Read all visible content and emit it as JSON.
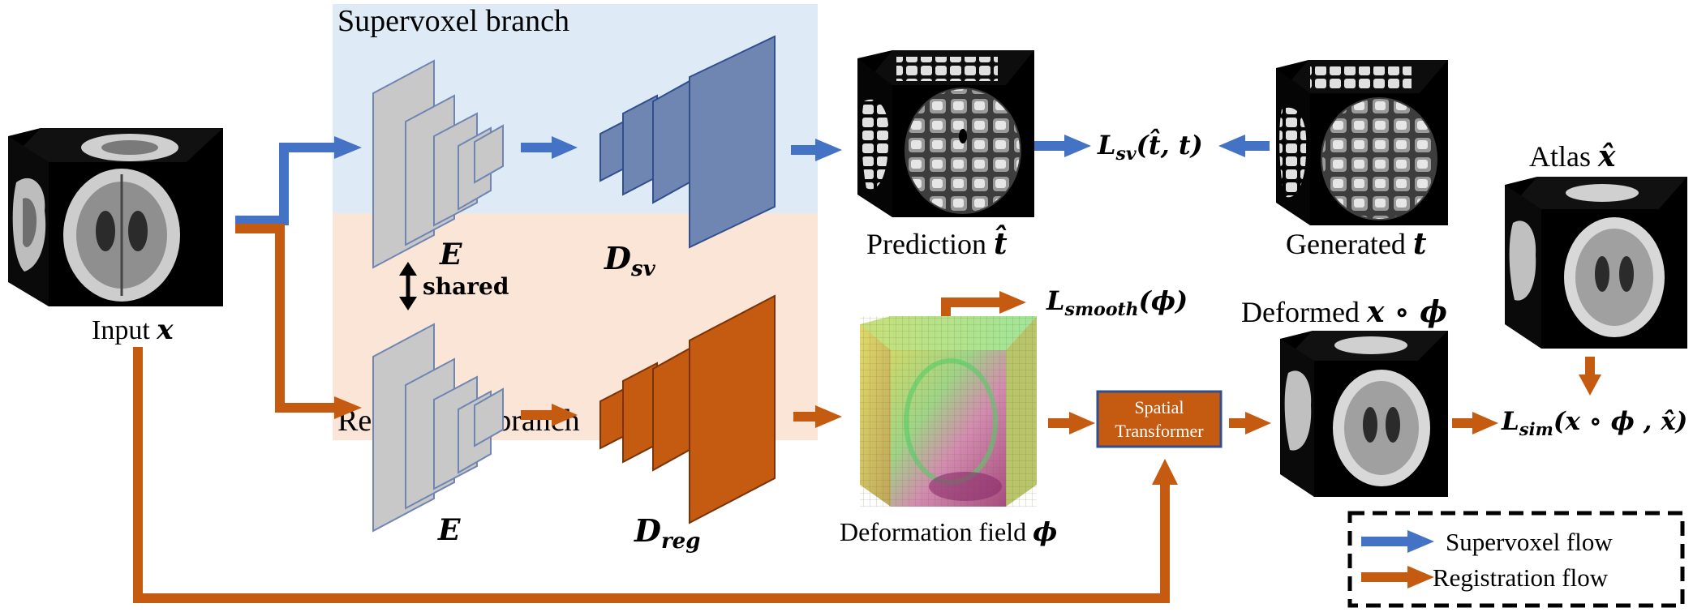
{
  "colors": {
    "supervoxel": "#4472C4",
    "registration": "#C55A11",
    "supervoxel_bg": "#DEEBF7",
    "registration_bg": "#FBE5D6",
    "encoder_gray": "#C8C8C8",
    "decoder_blue": "#6F86B3",
    "decoder_orange": "#C55A11"
  },
  "branches": {
    "supervoxel": "Supervoxel branch",
    "registration": "Registration branch"
  },
  "labels": {
    "input_prefix": "Input ",
    "input_sym": "x",
    "encoder_top": "E",
    "encoder_bottom": "E",
    "shared": "shared",
    "decoder_sv_main": "D",
    "decoder_sv_sub": "sv",
    "decoder_reg_main": "D",
    "decoder_reg_sub": "reg",
    "prediction_prefix": "Prediction ",
    "prediction_sym": "t̂",
    "generated_prefix": "Generated ",
    "generated_sym": "t",
    "loss_sv_main": "L",
    "loss_sv_sub": "sv",
    "loss_sv_args": "(t̂, t)",
    "loss_smooth_main": "L",
    "loss_smooth_sub": "smooth",
    "loss_smooth_args": "(ϕ)",
    "deformed_prefix": "Deformed ",
    "deformed_sym": "x ∘ ϕ",
    "atlas_prefix": "Atlas ",
    "atlas_sym": "x̂",
    "loss_sim_main": "L",
    "loss_sim_sub": "sim",
    "loss_sim_args": "(x ∘ ϕ , x̂)",
    "deformation_prefix": "Deformation field ",
    "deformation_sym": "ϕ",
    "spatial_line1": "Spatial",
    "spatial_line2": "Transformer"
  },
  "legend": {
    "supervoxel_flow": "Supervoxel flow",
    "registration_flow": "Registration flow"
  },
  "icons": [
    "brain-cube-icon",
    "supervoxel-cube-icon",
    "deformation-field-cube-icon",
    "right-arrow-icon",
    "double-arrow-icon"
  ]
}
